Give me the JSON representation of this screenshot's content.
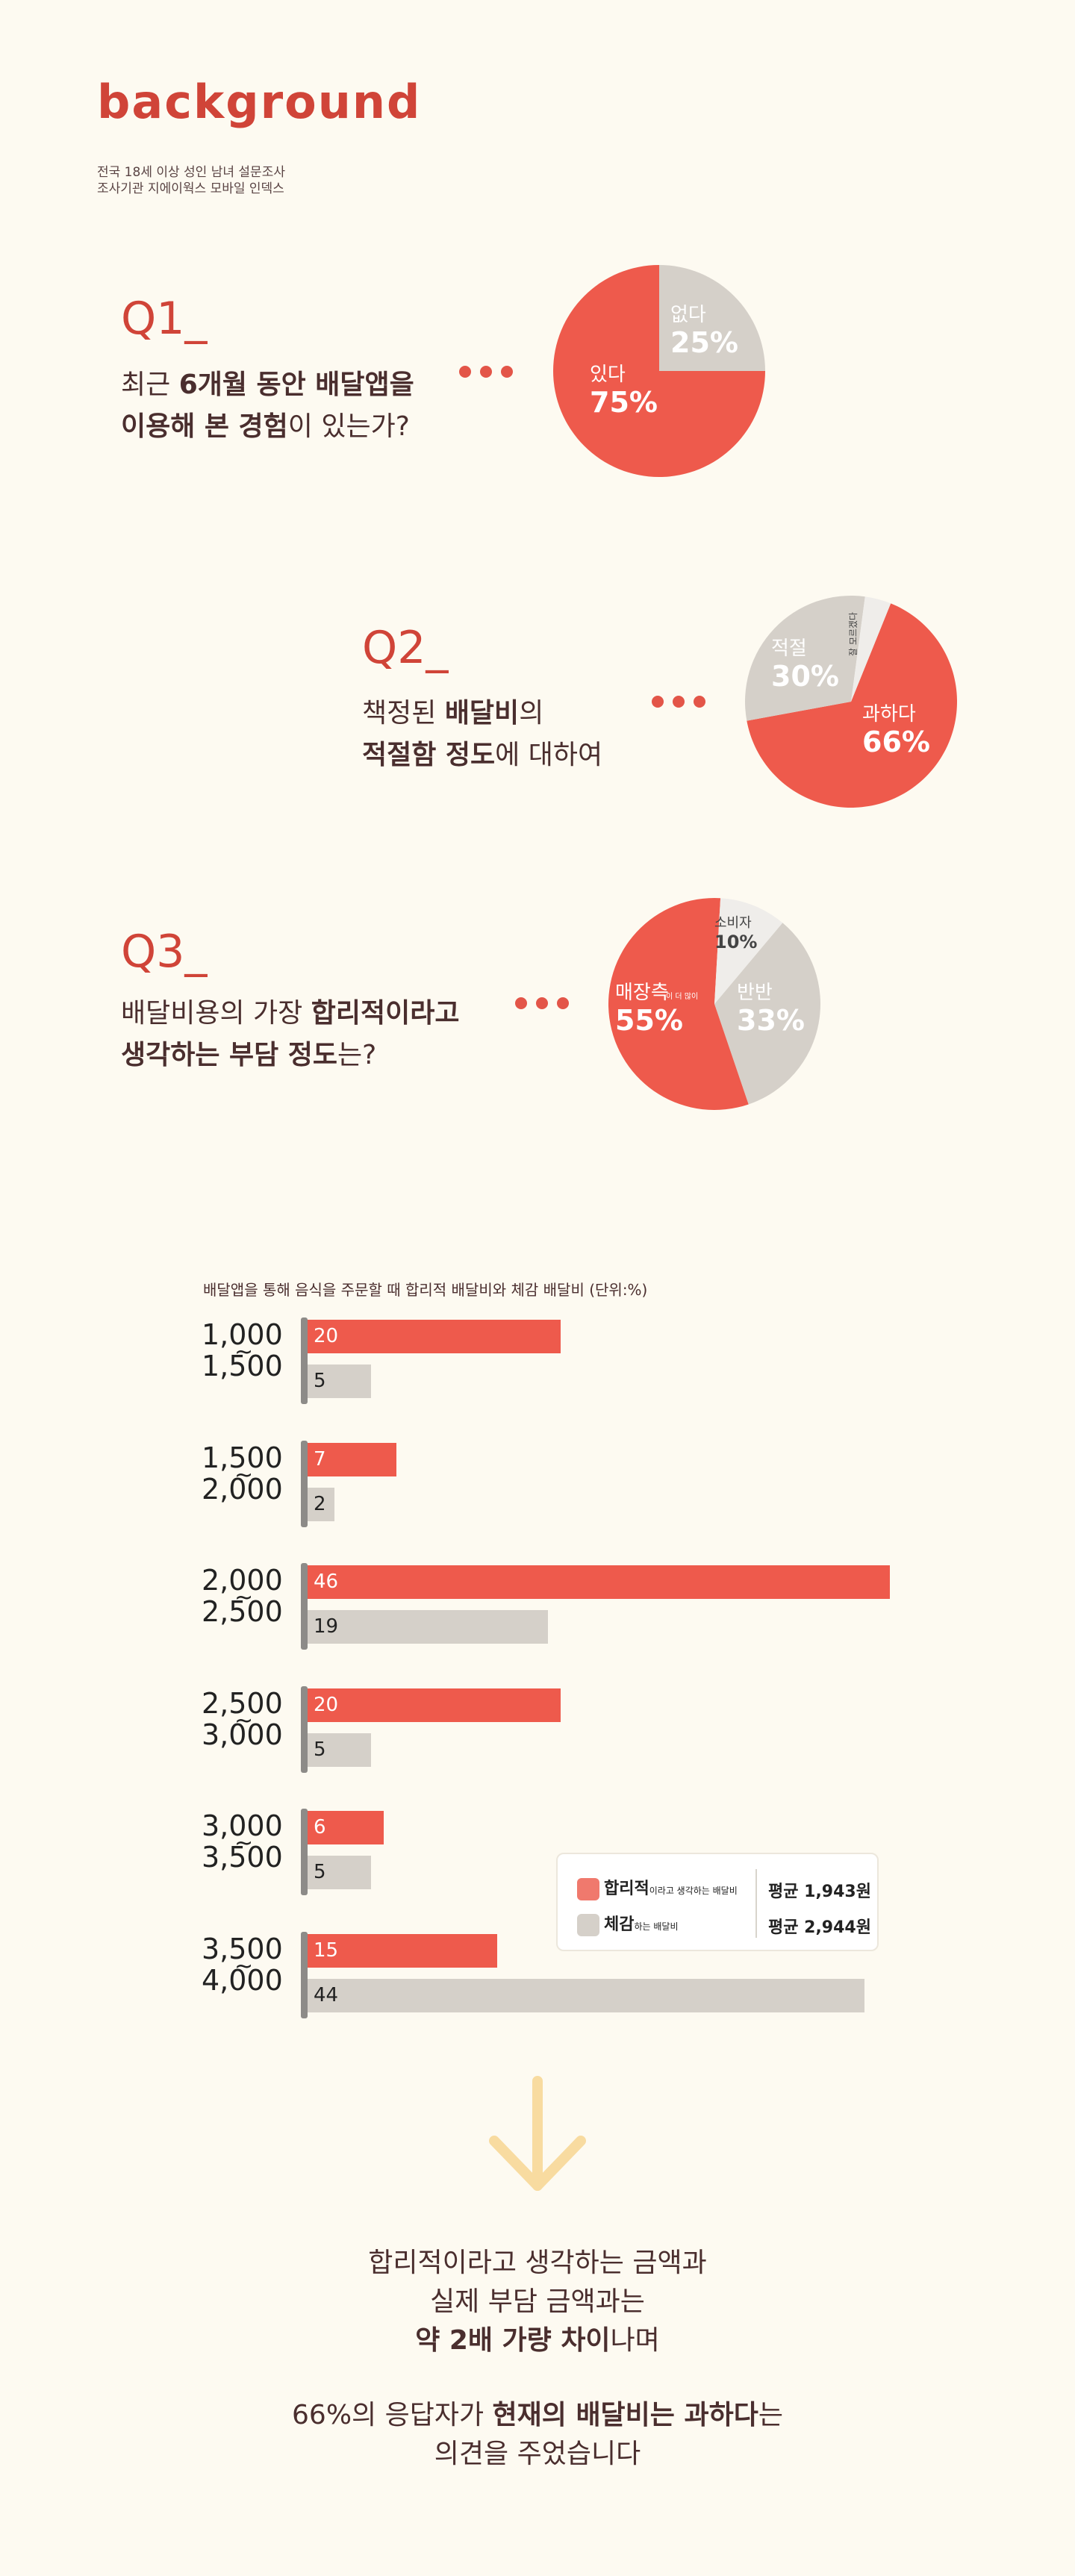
{
  "header": {
    "title": "background",
    "subtitle_line1": "전국 18세 이상 성인 남녀 설문조사",
    "subtitle_line2": "조사기관 지에이웍스 모바일 인덱스"
  },
  "q1": {
    "label": "Q1_",
    "text_l1_pre": "최근 ",
    "text_l1_bold": "6개월 동안 배달앱을",
    "text_l2_bold": "이용해 본 경험",
    "text_l2_post": "이 있는가?"
  },
  "q2": {
    "label": "Q2_",
    "text_l1_pre": "책정된 ",
    "text_l1_bold": "배달비",
    "text_l1_post": "의",
    "text_l2_bold": "적절함 정도",
    "text_l2_post": "에 대하여"
  },
  "q3": {
    "label": "Q3_",
    "text_l1_pre": "배달비용의 가장 ",
    "text_l1_bold": "합리적이라고",
    "text_l2_bold": "생각하는 부담 정도",
    "text_l2_post": "는?"
  },
  "pie1": {
    "slices": [
      {
        "name": "있다",
        "pct": "75%",
        "value": 75,
        "color": "#ee5a4c"
      },
      {
        "name": "없다",
        "pct": "25%",
        "value": 25,
        "color": "#d5d0c9"
      }
    ]
  },
  "pie2": {
    "slices": [
      {
        "name": "과하다",
        "pct": "66%",
        "value": 66,
        "color": "#ee5a4c"
      },
      {
        "name": "적절",
        "pct": "30%",
        "value": 30,
        "color": "#d5d0c9"
      },
      {
        "name": "잘 모르겠다",
        "pct": "",
        "value": 4,
        "color": "#efedea"
      }
    ]
  },
  "pie3": {
    "slices": [
      {
        "name": "반반",
        "pct": "33%",
        "value": 33,
        "color": "#d5d0c9"
      },
      {
        "name": "매장측",
        "sub": "이 더 많이",
        "pct": "55%",
        "value": 55,
        "color": "#ee5a4c"
      },
      {
        "name": "소비자",
        "pct": "10%",
        "value": 10,
        "color": "#efedea"
      }
    ]
  },
  "chart_data": {
    "type": "bar",
    "title": "배달앱을 통해 음식을 주문할 때 합리적 배달비와 체감 배달비 (단위:%)",
    "categories": [
      {
        "from": "1,000",
        "to": "1,500"
      },
      {
        "from": "1,500",
        "to": "2,000"
      },
      {
        "from": "2,000",
        "to": "2,500"
      },
      {
        "from": "2,500",
        "to": "3,000"
      },
      {
        "from": "3,000",
        "to": "3,500"
      },
      {
        "from": "3,500",
        "to": "4,000"
      }
    ],
    "tilde": "~",
    "series": [
      {
        "name": "합리적",
        "name_suffix": "이라고 생각하는 배달비",
        "values": [
          20,
          7,
          46,
          20,
          6,
          15
        ],
        "color": "#ee5a4c",
        "average": "평균 1,943원"
      },
      {
        "name": "체감",
        "name_suffix": "하는 배달비",
        "values": [
          5,
          2,
          19,
          5,
          5,
          44
        ],
        "color": "#d5d0c9",
        "average": "평균 2,944원"
      }
    ],
    "xlim": [
      0,
      46
    ]
  },
  "conclusion": {
    "l1": "합리적이라고 생각하는 금액과",
    "l2": "실제 부담 금액과는",
    "l3_bold": "약 2배 가량 차이",
    "l3_post": "나며",
    "l4_pre": "66%의 응답자가 ",
    "l4_bold": "현재의 배달비는 과하다",
    "l4_post": "는",
    "l5": "의견을 주었습니다"
  },
  "arrow_color": "#f8dba0"
}
